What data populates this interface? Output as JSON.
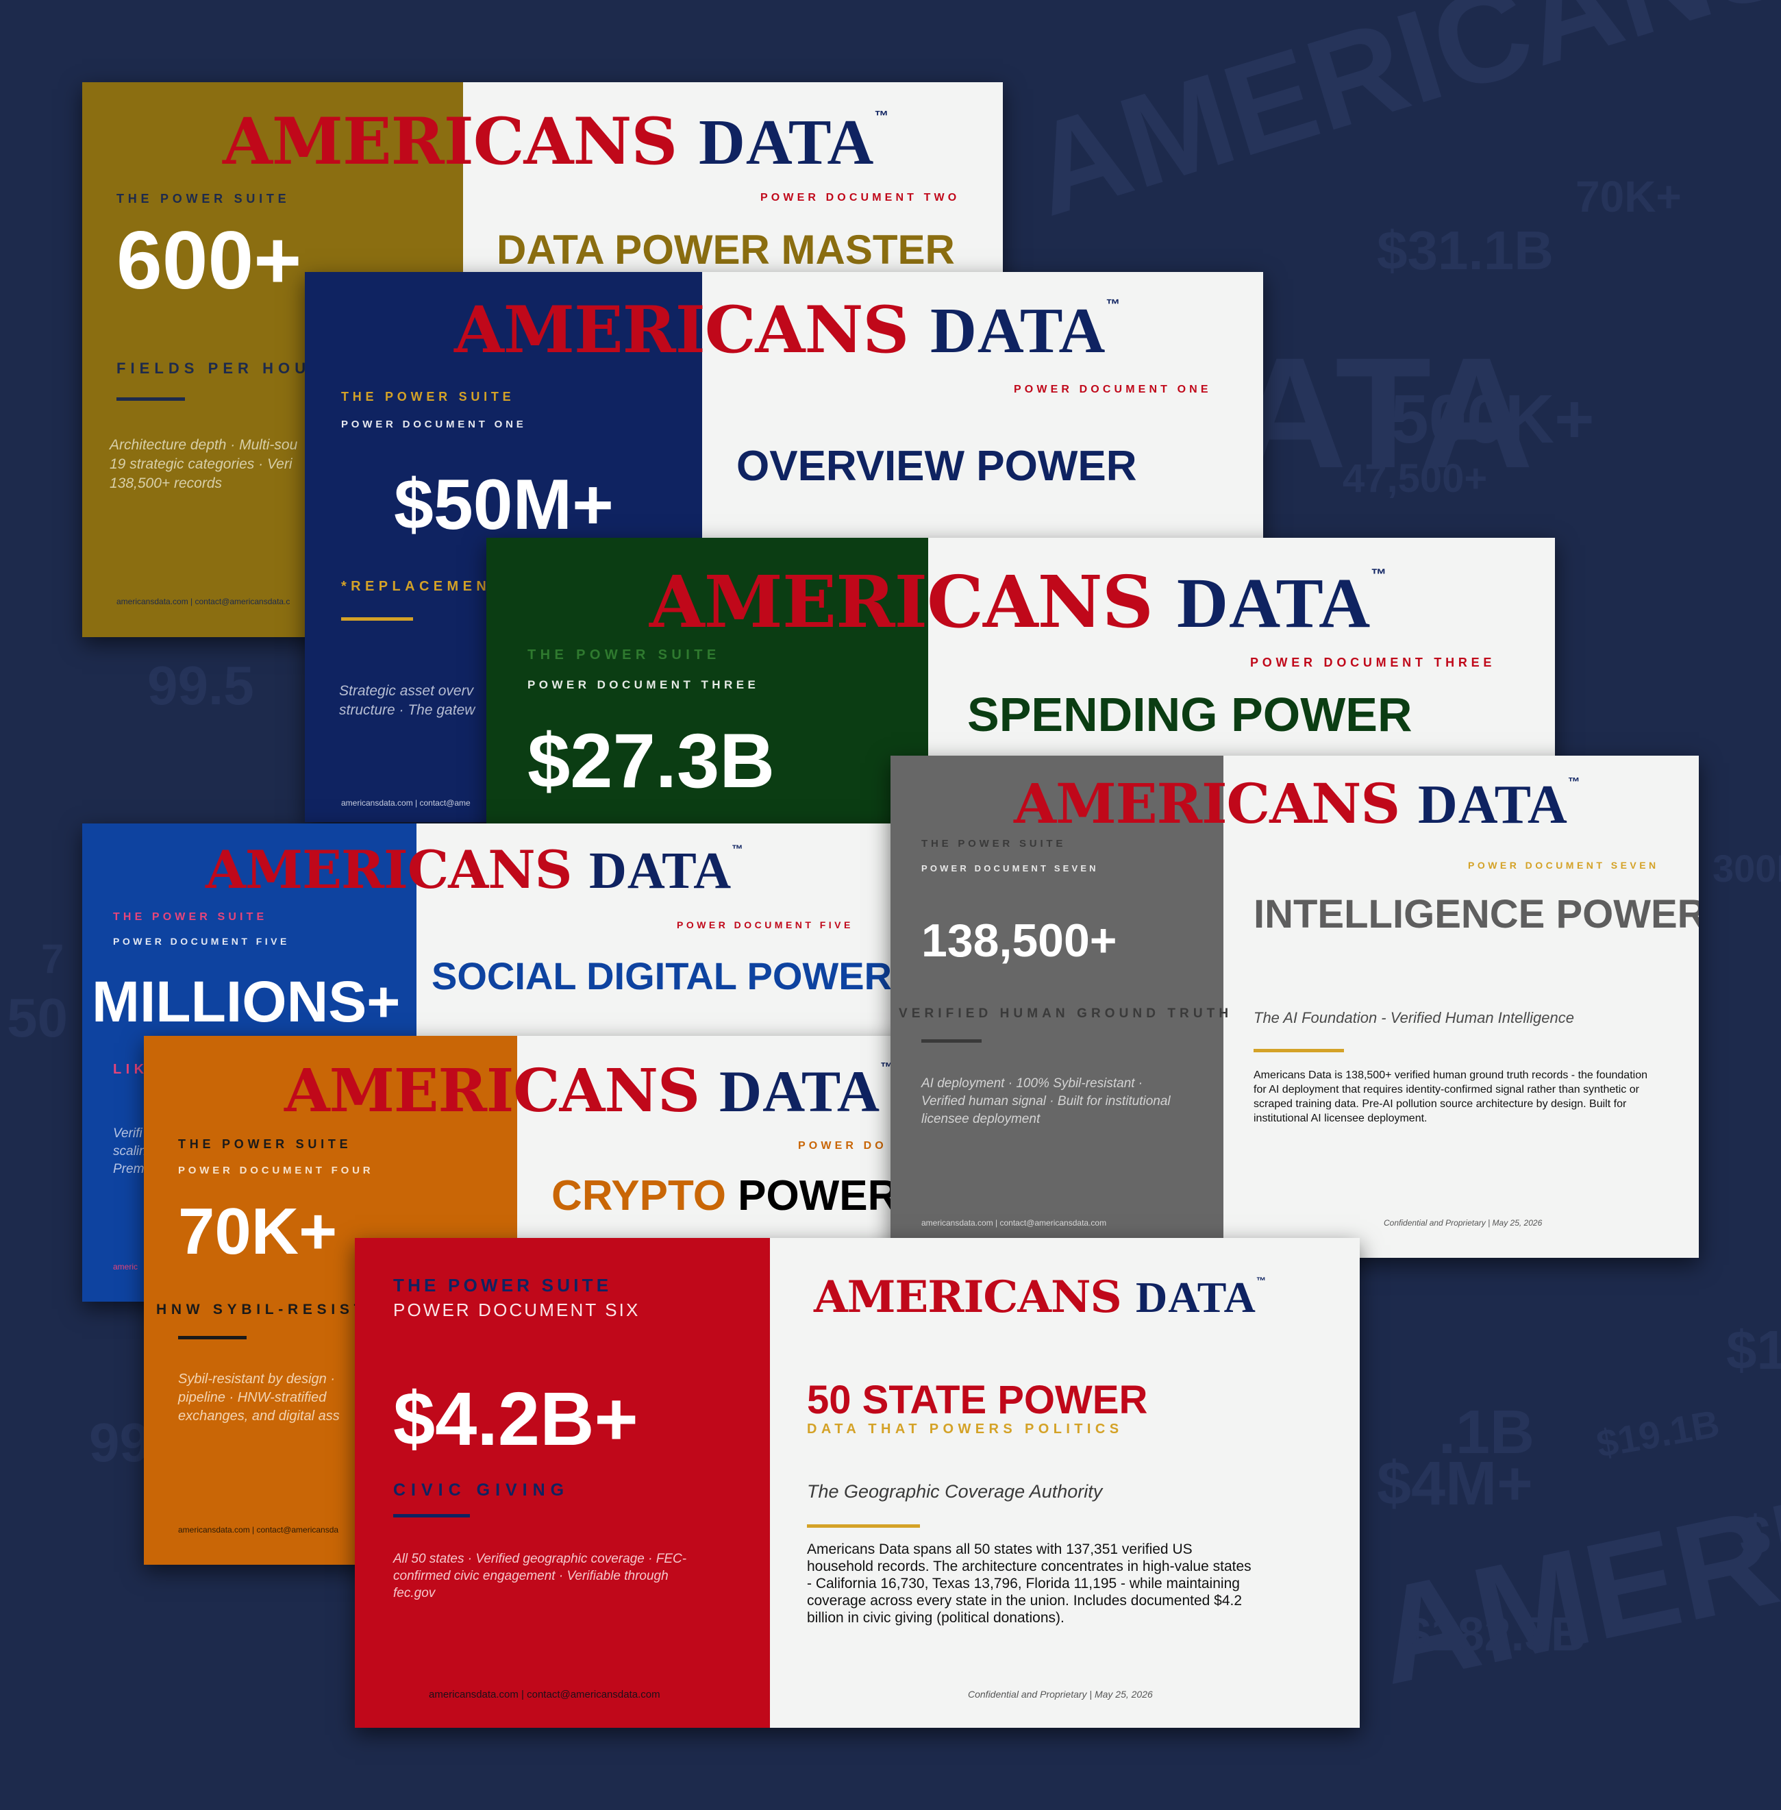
{
  "brand": {
    "red": "AMERI",
    "red2": "CANS",
    "blue": "DATA",
    "tm": "™"
  },
  "watermarks": [
    "AMERICANS DAT",
    "70K+",
    "$31.1B",
    "500K+",
    "47,500+",
    "99.5",
    "ATA",
    "7",
    "50",
    "300K",
    "99",
    "$1",
    "$19.1B",
    ".1B",
    "$4M+",
    "AMERI",
    "$182.5B",
    "$"
  ],
  "cards": {
    "two": {
      "suite": "THE POWER SUITE",
      "doc": "POWER DOCUMENT TWO",
      "stat": "600+",
      "title": "DATA POWER MASTER",
      "sub": "FIELDS PER HOUS",
      "desc1": "Architecture depth · Multi-sou",
      "desc2": "19 strategic categories · Veri",
      "desc3": "138,500+ records",
      "footer": "americansdata.com | contact@americansdata.c",
      "colors": {
        "left": "#8b6e11",
        "accent": "#8b6e11"
      }
    },
    "one": {
      "suite": "THE POWER SUITE",
      "doc_left": "POWER DOCUMENT ONE",
      "doc": "POWER DOCUMENT ONE",
      "stat": "$50M+",
      "title": "OVERVIEW POWER",
      "sub": "*REPLACEMEN",
      "desc1": "Strategic asset overv",
      "desc2": "structure · The gatew",
      "footer": "americansdata.com | contact@ame",
      "colors": {
        "left": "#0f2361",
        "accent": "#d4a227"
      }
    },
    "three": {
      "suite": "THE POWER SUITE",
      "doc_left": "POWER DOCUMENT THREE",
      "doc": "POWER DOCUMENT THREE",
      "stat": "$27.3B",
      "title": "SPENDING POWER",
      "colors": {
        "left": "#0b3d13",
        "accent": "#0b3d13"
      }
    },
    "five": {
      "suite": "THE POWER SUITE",
      "doc_left": "POWER DOCUMENT FIVE",
      "doc": "POWER DOCUMENT FIVE",
      "stat": "MILLIONS+",
      "title": "SOCIAL DIGITAL POWER",
      "sub": "LIK",
      "desc1": "Verifi",
      "desc2": "scalin",
      "desc3": "Prem",
      "footer": "americ",
      "colors": {
        "left": "#0e43a0",
        "accent": "#0e43a0"
      }
    },
    "four": {
      "suite": "THE POWER SUITE",
      "doc_left": "POWER DOCUMENT FOUR",
      "doc": "POWER DO",
      "stat": "70K+",
      "title_a": "CRYPTO",
      "title_b": "POWER",
      "sub": "HNW SYBIL-RESIST",
      "desc1": "Sybil-resistant by design ·",
      "desc2": "pipeline · HNW-stratified",
      "desc3": "exchanges, and digital ass",
      "footer": "americansdata.com | contact@americansda",
      "colors": {
        "left": "#c96606",
        "accent": "#c96606"
      }
    },
    "seven": {
      "suite": "THE POWER SUITE",
      "doc_left": "POWER DOCUMENT SEVEN",
      "doc": "POWER DOCUMENT SEVEN",
      "stat": "138,500+",
      "title": "INTELLIGENCE POWER",
      "sub": "VERIFIED HUMAN GROUND TRUTH",
      "desc1": "AI deployment · 100% Sybil-resistant ·",
      "desc2": "Verified human signal · Built for institutional",
      "desc3": "licensee deployment",
      "tagline": "The AI Foundation - Verified Human Intelligence",
      "body1": "Americans Data is 138,500+ verified human ground truth records - the foundation",
      "body2": "for AI deployment that requires identity-confirmed signal rather than synthetic or",
      "body3": "scraped training data. Pre-AI pollution source architecture by design. Built for",
      "body4": "institutional AI licensee deployment.",
      "footer": "americansdata.com | contact@americansdata.com",
      "confidential": "Confidential and Proprietary | May 25, 2026",
      "colors": {
        "left": "#676767",
        "accent": "#d4a227"
      }
    },
    "six": {
      "suite": "THE POWER SUITE",
      "doc_left": "POWER DOCUMENT SIX",
      "stat": "$4.2B+",
      "sub": "CIVIC GIVING",
      "desc1": "All 50 states · Verified geographic coverage · FEC-",
      "desc2": "confirmed civic engagement · Verifiable through",
      "desc3": "fec.gov",
      "title": "50 STATE POWER",
      "subtitle": "DATA THAT POWERS POLITICS",
      "tagline": "The Geographic Coverage Authority",
      "body1": "Americans Data spans all 50 states with 137,351 verified US",
      "body2": "household records. The architecture concentrates in high-value states",
      "body3": "- California 16,730, Texas 13,796, Florida 11,195 - while maintaining",
      "body4": "coverage across every state in the union. Includes documented $4.2",
      "body5": "billion in civic giving (political donations).",
      "footer": "americansdata.com | contact@americansdata.com",
      "confidential": "Confidential and Proprietary | May 25, 2026",
      "colors": {
        "left": "#c0081a",
        "accent": "#d4a227"
      }
    }
  }
}
